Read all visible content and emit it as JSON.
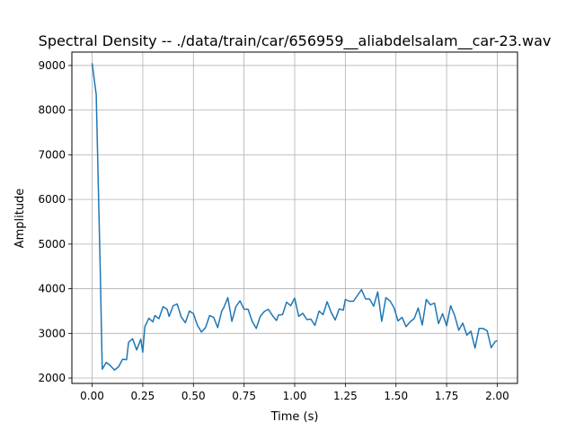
{
  "chart_data": {
    "type": "line",
    "title": "Spectral Density -- ./data/train/car/656959__aliabdelsalam__car-23.wav",
    "xlabel": "Time (s)",
    "ylabel": "Amplitude",
    "xlim": [
      -0.1,
      2.1
    ],
    "ylim": [
      1880,
      9300
    ],
    "grid": true,
    "x_ticks": [
      0.0,
      0.25,
      0.5,
      0.75,
      1.0,
      1.25,
      1.5,
      1.75,
      2.0
    ],
    "x_tick_labels": [
      "0.00",
      "0.25",
      "0.50",
      "0.75",
      "1.00",
      "1.25",
      "1.50",
      "1.75",
      "2.00"
    ],
    "y_ticks": [
      2000,
      3000,
      4000,
      5000,
      6000,
      7000,
      8000,
      9000
    ],
    "y_tick_labels": [
      "2000",
      "3000",
      "4000",
      "5000",
      "6000",
      "7000",
      "8000",
      "9000"
    ],
    "colors": {
      "line": "#1f77b4",
      "grid": "#b0b0b0",
      "axes": "#000000"
    },
    "series": [
      {
        "x": [
          0.0,
          0.02,
          0.04,
          0.05,
          0.07,
          0.09,
          0.11,
          0.13,
          0.15,
          0.17,
          0.18,
          0.2,
          0.22,
          0.24,
          0.25,
          0.26,
          0.28,
          0.3,
          0.31,
          0.33,
          0.35,
          0.37,
          0.38,
          0.4,
          0.42,
          0.44,
          0.46,
          0.48,
          0.5,
          0.52,
          0.54,
          0.56,
          0.58,
          0.6,
          0.62,
          0.64,
          0.65,
          0.67,
          0.69,
          0.71,
          0.73,
          0.75,
          0.77,
          0.79,
          0.81,
          0.83,
          0.85,
          0.87,
          0.89,
          0.91,
          0.92,
          0.94,
          0.96,
          0.98,
          1.0,
          1.02,
          1.04,
          1.06,
          1.08,
          1.1,
          1.12,
          1.14,
          1.16,
          1.18,
          1.2,
          1.22,
          1.24,
          1.25,
          1.27,
          1.29,
          1.31,
          1.33,
          1.35,
          1.37,
          1.39,
          1.41,
          1.43,
          1.45,
          1.47,
          1.49,
          1.51,
          1.53,
          1.55,
          1.57,
          1.59,
          1.61,
          1.63,
          1.65,
          1.67,
          1.69,
          1.71,
          1.73,
          1.75,
          1.77,
          1.79,
          1.81,
          1.83,
          1.85,
          1.87,
          1.89,
          1.91,
          1.93,
          1.95,
          1.97,
          1.99,
          2.0
        ],
        "y": [
          9050,
          8350,
          4400,
          2200,
          2350,
          2280,
          2180,
          2250,
          2420,
          2410,
          2800,
          2880,
          2630,
          2870,
          2580,
          3150,
          3340,
          3260,
          3400,
          3330,
          3600,
          3540,
          3380,
          3620,
          3660,
          3370,
          3240,
          3500,
          3440,
          3180,
          3030,
          3130,
          3400,
          3360,
          3130,
          3500,
          3580,
          3800,
          3270,
          3600,
          3730,
          3540,
          3540,
          3270,
          3110,
          3380,
          3490,
          3540,
          3400,
          3290,
          3410,
          3420,
          3700,
          3620,
          3790,
          3380,
          3450,
          3310,
          3320,
          3180,
          3500,
          3420,
          3710,
          3470,
          3300,
          3550,
          3520,
          3760,
          3720,
          3720,
          3850,
          3980,
          3770,
          3770,
          3610,
          3930,
          3270,
          3800,
          3730,
          3580,
          3280,
          3360,
          3150,
          3260,
          3330,
          3570,
          3190,
          3760,
          3640,
          3680,
          3220,
          3440,
          3170,
          3620,
          3400,
          3070,
          3230,
          2960,
          3050,
          2670,
          3110,
          3110,
          3060,
          2680,
          2820,
          2840
        ]
      }
    ]
  }
}
